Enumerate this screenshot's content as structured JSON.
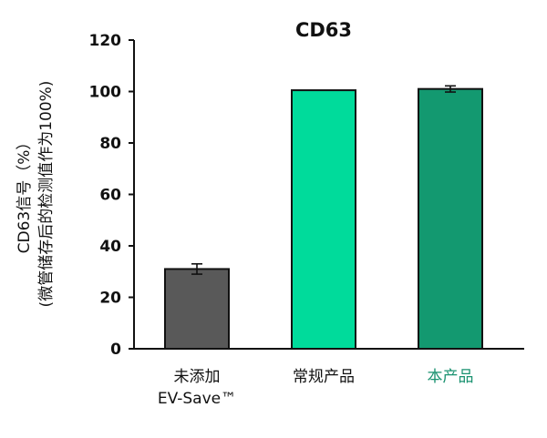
{
  "chart_data": {
    "type": "bar",
    "title": "CD63",
    "ylabel_lines": [
      "CD63信号（%）",
      "(微管储存后的检测值作为100%)"
    ],
    "categories": [
      {
        "lines": [
          "未添加",
          "EV-Save™"
        ],
        "color": "#111111"
      },
      {
        "lines": [
          "常规产品"
        ],
        "color": "#111111"
      },
      {
        "lines": [
          "本产品"
        ],
        "color": "#1a9270"
      }
    ],
    "values": [
      31,
      100.5,
      101
    ],
    "errors": [
      2,
      0,
      1.2
    ],
    "bar_colors": [
      "#595959",
      "#00db9b",
      "#139970"
    ],
    "ylim": [
      0,
      120
    ],
    "yticks": [
      0,
      20,
      40,
      60,
      80,
      100,
      120
    ],
    "grid": false,
    "legend": "none"
  }
}
